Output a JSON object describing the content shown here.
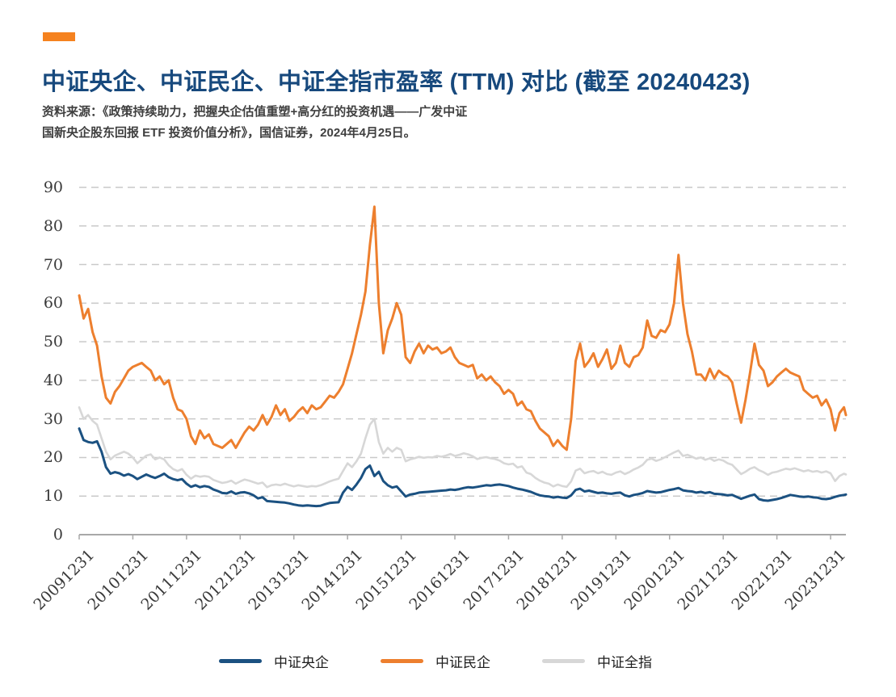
{
  "header": {
    "accent_color": "#f5821f",
    "title": "中证央企、中证民企、中证全指市盈率 (TTM) 对比 (截至 20240423)",
    "title_color": "#17497d",
    "source_line1": "资料来源：《政策持续助力，把握央企估值重塑+高分红的投资机遇——广发中证",
    "source_line2": "国新央企股东回报 ETF 投资价值分析》，国信证券，2024年4月25日。"
  },
  "chart_data": {
    "type": "line",
    "x_start": "20091231",
    "x_end": "20240423",
    "x_sampling": "monthly estimates read from plot",
    "x_tick_labels": [
      "20091231",
      "20101231",
      "20111231",
      "20121231",
      "20131231",
      "20141231",
      "20151231",
      "20161231",
      "20171231",
      "20181231",
      "20191231",
      "20201231",
      "20211231",
      "20221231",
      "20231231"
    ],
    "ylim": [
      0,
      90
    ],
    "y_ticks": [
      0,
      10,
      20,
      30,
      40,
      50,
      60,
      70,
      80,
      90
    ],
    "grid": "horizontal-dashed",
    "grid_color": "#c9c9c9",
    "axis_color": "#a8a8a8",
    "tick_label_color": "#3a3a3a",
    "legend_position": "bottom-center",
    "series": [
      {
        "name": "中证央企",
        "color": "#1b5181",
        "values": [
          27.5,
          24.5,
          24,
          23.8,
          24.2,
          21.5,
          17.5,
          15.8,
          16.2,
          15.9,
          15.3,
          15.7,
          15.2,
          14.4,
          15,
          15.6,
          15.1,
          14.7,
          15.2,
          15.8,
          14.9,
          14.4,
          14.1,
          14.4,
          13.2,
          12.4,
          12.8,
          12.3,
          12.6,
          12.4,
          11.7,
          11.3,
          10.8,
          10.7,
          11.2,
          10.6,
          10.9,
          11,
          10.7,
          10.2,
          9.4,
          9.7,
          8.7,
          8.6,
          8.5,
          8.4,
          8.3,
          8.1,
          7.8,
          7.6,
          7.5,
          7.6,
          7.5,
          7.4,
          7.5,
          7.9,
          8.2,
          8.3,
          8.4,
          10.9,
          12.4,
          11.6,
          13,
          14.7,
          17,
          17.9,
          15.2,
          16.3,
          13.9,
          12.8,
          12.2,
          12.5,
          11.2,
          9.9,
          10.4,
          10.6,
          10.9,
          11,
          11.1,
          11.2,
          11.3,
          11.4,
          11.5,
          11.7,
          11.6,
          11.8,
          12.1,
          12.3,
          12.2,
          12.4,
          12.6,
          12.8,
          12.7,
          12.9,
          13,
          12.8,
          12.6,
          12.2,
          11.9,
          11.7,
          11.4,
          11.1,
          10.6,
          10.2,
          10,
          9.9,
          9.6,
          9.8,
          9.6,
          9.5,
          10.2,
          11.6,
          11.9,
          11.2,
          11.4,
          11.1,
          10.8,
          10.9,
          10.7,
          10.6,
          10.8,
          10.9,
          10.2,
          9.9,
          10.3,
          10.5,
          10.8,
          11.3,
          11.1,
          10.9,
          11,
          11.3,
          11.6,
          11.8,
          12.1,
          11.5,
          11.3,
          11.2,
          10.9,
          11.1,
          10.8,
          11,
          10.6,
          10.5,
          10.4,
          10.2,
          10.3,
          9.8,
          9.3,
          9.7,
          10.1,
          10.4,
          9.2,
          8.9,
          8.8,
          9,
          9.2,
          9.5,
          9.9,
          10.3,
          10.1,
          9.9,
          9.8,
          9.9,
          9.7,
          9.6,
          9.3,
          9.2,
          9.4,
          9.8,
          10.1,
          10.3,
          10.4
        ]
      },
      {
        "name": "中证民企",
        "color": "#ed7f2e",
        "values": [
          62,
          56,
          58.5,
          52.5,
          49,
          41,
          35.5,
          34,
          37,
          38.5,
          40.5,
          42.5,
          43.5,
          44,
          44.5,
          43.5,
          42.5,
          40,
          41,
          39,
          40,
          35.5,
          32.5,
          32,
          30,
          25.5,
          23.5,
          27,
          25,
          26,
          23.5,
          23,
          22.5,
          23.5,
          24.5,
          22.5,
          24.5,
          26.5,
          28,
          27,
          28.5,
          31,
          28.5,
          30.5,
          33.5,
          31,
          32.5,
          29.5,
          30.5,
          32,
          33,
          31.5,
          33.5,
          32.5,
          33,
          34.5,
          36,
          35.5,
          37,
          39,
          43,
          47,
          52,
          57,
          63,
          75,
          85,
          60,
          47,
          53,
          56,
          60,
          57,
          46,
          44.5,
          47.5,
          49.5,
          47,
          49,
          48,
          48.5,
          47,
          47.5,
          48.5,
          46,
          44.5,
          44,
          43.5,
          44,
          40.5,
          41.5,
          40,
          41,
          39.5,
          38.5,
          36.5,
          37.5,
          36.5,
          33.5,
          34.5,
          32.5,
          32,
          29.5,
          27.5,
          26.5,
          25.5,
          23,
          24.5,
          23,
          22,
          30,
          45,
          49.5,
          43.5,
          45,
          47,
          43.5,
          45.5,
          48,
          43,
          44.5,
          49,
          44.5,
          43.5,
          46,
          46.5,
          48.5,
          55.5,
          51.5,
          51,
          53,
          52.5,
          54.5,
          60,
          72.5,
          60,
          52,
          47.5,
          41.5,
          41.5,
          40,
          43,
          40.5,
          42.5,
          41.5,
          41,
          39.5,
          34,
          29,
          35,
          42,
          49.5,
          44,
          42.5,
          38.5,
          39.5,
          41,
          42,
          43,
          42,
          41.5,
          41,
          37.5,
          36.5,
          35.5,
          36,
          33.5,
          35,
          32.5,
          27,
          31.5,
          33,
          31
        ]
      },
      {
        "name": "中证全指",
        "color": "#d7d7d7",
        "values": [
          33,
          30,
          31,
          29.5,
          28.5,
          25,
          21.5,
          19.5,
          20.5,
          21,
          21.5,
          21,
          20,
          18.5,
          19.5,
          20.5,
          20.8,
          19.5,
          20,
          19.5,
          18,
          17,
          16.5,
          17,
          15.5,
          14.5,
          15.3,
          15,
          15.2,
          15,
          14.2,
          13.8,
          13.4,
          13.6,
          14,
          13.2,
          13.8,
          14.3,
          14,
          13.6,
          13.2,
          13.5,
          12.3,
          12.8,
          13,
          12.8,
          13.2,
          12.8,
          12.5,
          12.8,
          12.6,
          12.4,
          12.6,
          12.5,
          12.8,
          13.3,
          13.8,
          14.2,
          14.5,
          16.5,
          18.5,
          17.5,
          19,
          21,
          25,
          28.5,
          30,
          24,
          21,
          22.5,
          21.5,
          22.5,
          22,
          19,
          19.5,
          19.8,
          20.2,
          19.9,
          20.1,
          20,
          20.4,
          20.2,
          20.5,
          20.9,
          20.4,
          20.7,
          21.1,
          20.8,
          20.3,
          19.6,
          19.9,
          20.1,
          19.8,
          19.6,
          19.2,
          18.5,
          18.2,
          18.4,
          17.4,
          17.7,
          16.1,
          15.7,
          14.7,
          14,
          13.5,
          13.2,
          12.5,
          13,
          12.6,
          12.4,
          13.8,
          16.6,
          17.1,
          15.9,
          16.3,
          16.5,
          15.9,
          16.3,
          15.7,
          15.5,
          16.1,
          16.4,
          15.7,
          16.2,
          16.9,
          17.4,
          18.1,
          19.4,
          19.7,
          19.1,
          19.5,
          20.1,
          20.7,
          21.3,
          21.8,
          20.4,
          20.7,
          20.2,
          19.7,
          20,
          19.4,
          19.8,
          19.1,
          19.5,
          19.2,
          18.5,
          18.1,
          16.9,
          15.7,
          16.3,
          17.1,
          17.5,
          16.7,
          16.2,
          15.5,
          16.1,
          16.3,
          16.7,
          17.1,
          16.9,
          17.2,
          16.8,
          16.4,
          16.7,
          16.3,
          16.5,
          16.1,
          16.4,
          15.9,
          13.9,
          15.2,
          15.8,
          15.6
        ]
      }
    ]
  }
}
